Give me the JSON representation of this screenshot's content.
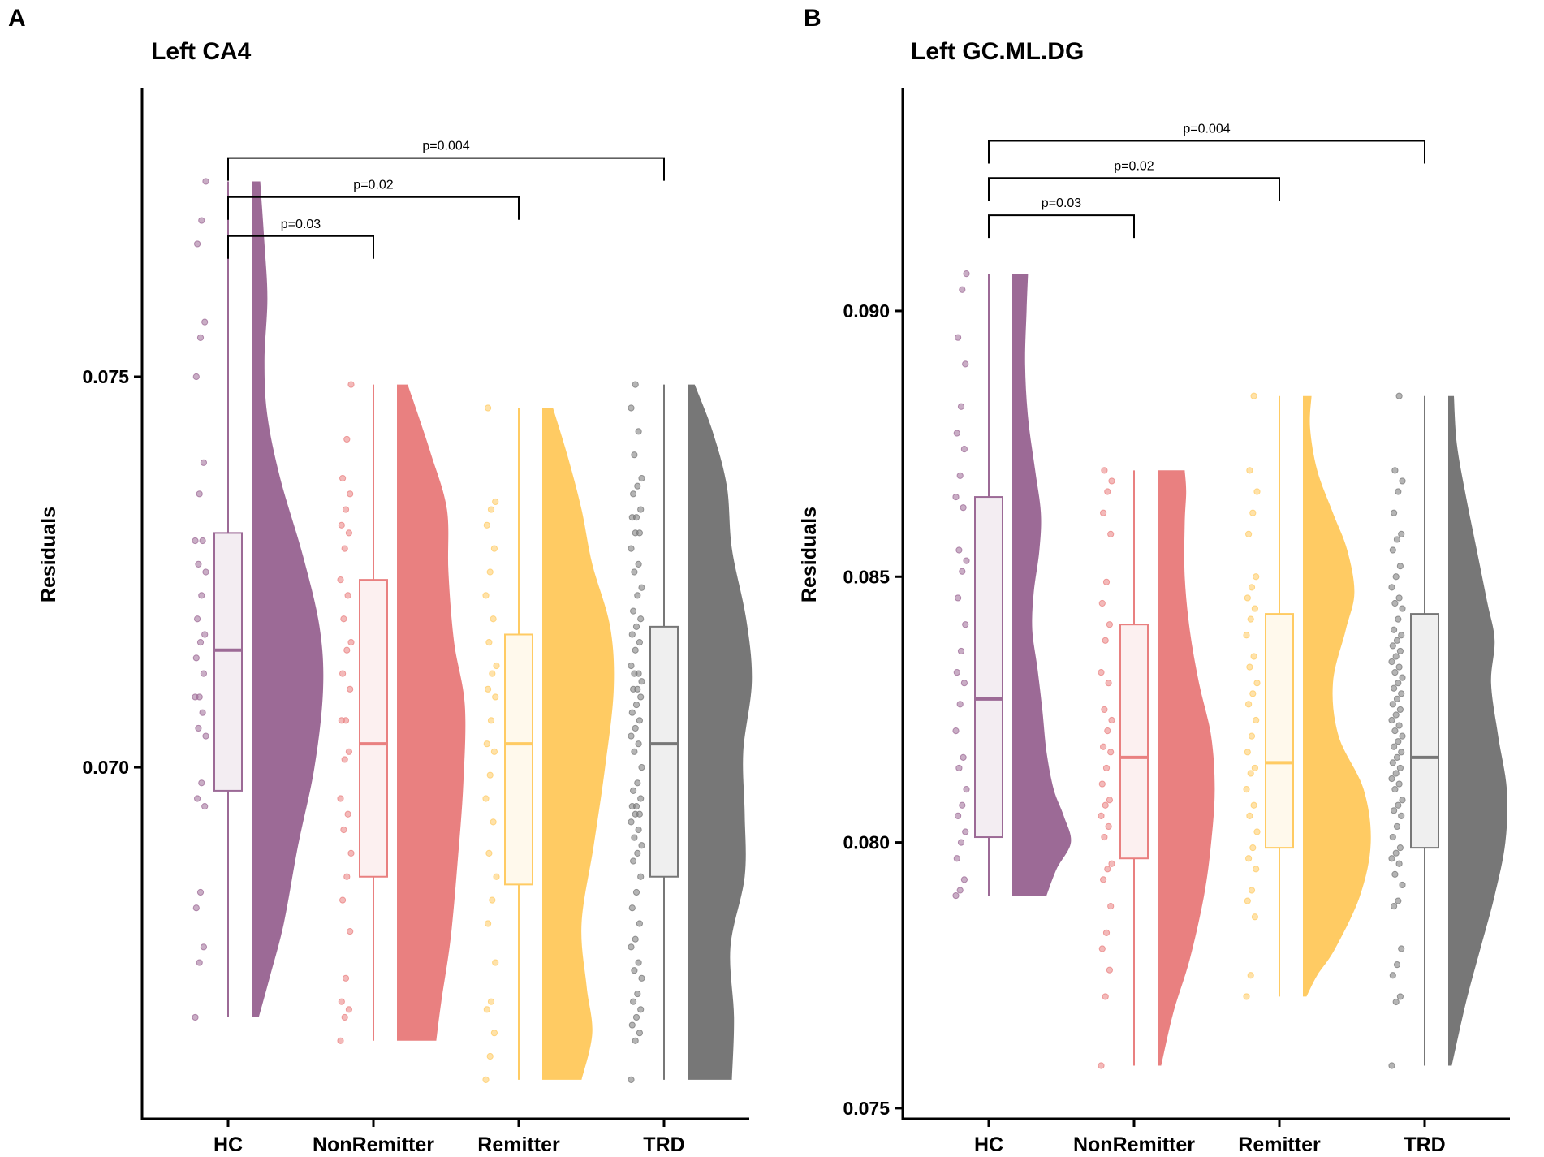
{
  "chart_data": [
    {
      "type": "raincloud",
      "panel_label": "A",
      "title": "Left CA4",
      "xlabel": "",
      "ylabel": "Residuals",
      "ylim": [
        0.0655,
        0.0787
      ],
      "yticks": [
        0.07,
        0.075
      ],
      "ytick_labels": [
        "0.070",
        "0.075"
      ],
      "categories": [
        "HC",
        "NonRemitter",
        "Remitter",
        "TRD"
      ],
      "colors": [
        "#9C6A96",
        "#E98080",
        "#FFCB63",
        "#777777"
      ],
      "boxes": [
        {
          "group": "HC",
          "min": 0.0668,
          "q1": 0.0697,
          "median": 0.0715,
          "q3": 0.073,
          "max": 0.0775
        },
        {
          "group": "NonRemitter",
          "min": 0.0665,
          "q1": 0.0686,
          "median": 0.0703,
          "q3": 0.0724,
          "max": 0.0749
        },
        {
          "group": "Remitter",
          "min": 0.066,
          "q1": 0.0685,
          "median": 0.0703,
          "q3": 0.0717,
          "max": 0.0746
        },
        {
          "group": "TRD",
          "min": 0.066,
          "q1": 0.0686,
          "median": 0.0703,
          "q3": 0.0718,
          "max": 0.0749
        }
      ],
      "comparisons": [
        {
          "from": "HC",
          "to": "NonRemitter",
          "label": "p=0.03",
          "y": 0.0768
        },
        {
          "from": "HC",
          "to": "Remitter",
          "label": "p=0.02",
          "y": 0.0773
        },
        {
          "from": "HC",
          "to": "TRD",
          "label": "p=0.004",
          "y": 0.0778
        }
      ],
      "points": [
        [
          0.0668,
          0.0675,
          0.0677,
          0.0682,
          0.0684,
          0.0695,
          0.0696,
          0.0698,
          0.0704,
          0.0705,
          0.0707,
          0.0709,
          0.0709,
          0.0712,
          0.0714,
          0.0716,
          0.0717,
          0.0719,
          0.0722,
          0.0725,
          0.0726,
          0.0729,
          0.0729,
          0.0735,
          0.0739,
          0.075,
          0.0755,
          0.0757,
          0.0767,
          0.077,
          0.0775
        ],
        [
          0.0665,
          0.0668,
          0.0669,
          0.067,
          0.0673,
          0.0679,
          0.0683,
          0.0686,
          0.0689,
          0.0692,
          0.0694,
          0.0696,
          0.0701,
          0.0702,
          0.0706,
          0.0706,
          0.071,
          0.0712,
          0.0715,
          0.0716,
          0.0719,
          0.0722,
          0.0724,
          0.0728,
          0.073,
          0.0731,
          0.0733,
          0.0735,
          0.0737,
          0.0742,
          0.0749
        ],
        [
          0.066,
          0.0663,
          0.0666,
          0.0669,
          0.067,
          0.0675,
          0.068,
          0.0683,
          0.0686,
          0.0689,
          0.0693,
          0.0696,
          0.0699,
          0.0702,
          0.0703,
          0.0706,
          0.0709,
          0.071,
          0.0712,
          0.0713,
          0.0716,
          0.0719,
          0.0722,
          0.0725,
          0.0728,
          0.0731,
          0.0733,
          0.0734,
          0.0746
        ],
        [
          0.066,
          0.0665,
          0.0666,
          0.0667,
          0.0668,
          0.0669,
          0.067,
          0.0671,
          0.0673,
          0.0674,
          0.0675,
          0.0677,
          0.0678,
          0.068,
          0.0682,
          0.0684,
          0.0686,
          0.0688,
          0.0689,
          0.069,
          0.0691,
          0.0692,
          0.0693,
          0.0694,
          0.0694,
          0.0695,
          0.0695,
          0.0696,
          0.0697,
          0.0698,
          0.07,
          0.0702,
          0.0703,
          0.0704,
          0.0705,
          0.0706,
          0.0707,
          0.0708,
          0.0709,
          0.071,
          0.071,
          0.0711,
          0.0712,
          0.0712,
          0.0713,
          0.0715,
          0.0716,
          0.0717,
          0.0718,
          0.0719,
          0.072,
          0.0722,
          0.0723,
          0.0725,
          0.0726,
          0.0728,
          0.073,
          0.073,
          0.0732,
          0.0732,
          0.0733,
          0.0735,
          0.0736,
          0.0737,
          0.074,
          0.0743,
          0.0746,
          0.0749
        ]
      ],
      "densities": [
        [
          [
            0.0668,
            0.1
          ],
          [
            0.0673,
            0.25
          ],
          [
            0.068,
            0.45
          ],
          [
            0.069,
            0.65
          ],
          [
            0.07,
            0.88
          ],
          [
            0.071,
            1.0
          ],
          [
            0.0718,
            0.95
          ],
          [
            0.0727,
            0.72
          ],
          [
            0.0737,
            0.4
          ],
          [
            0.0745,
            0.22
          ],
          [
            0.0752,
            0.18
          ],
          [
            0.076,
            0.22
          ],
          [
            0.0767,
            0.18
          ],
          [
            0.0775,
            0.12
          ]
        ],
        [
          [
            0.0665,
            0.55
          ],
          [
            0.067,
            0.62
          ],
          [
            0.0678,
            0.75
          ],
          [
            0.0688,
            0.85
          ],
          [
            0.0698,
            0.93
          ],
          [
            0.0708,
            0.95
          ],
          [
            0.0716,
            0.8
          ],
          [
            0.0725,
            0.72
          ],
          [
            0.0733,
            0.7
          ],
          [
            0.074,
            0.48
          ],
          [
            0.0745,
            0.3
          ],
          [
            0.0749,
            0.15
          ]
        ],
        [
          [
            0.066,
            0.55
          ],
          [
            0.0666,
            0.7
          ],
          [
            0.0672,
            0.62
          ],
          [
            0.068,
            0.55
          ],
          [
            0.069,
            0.72
          ],
          [
            0.07,
            0.88
          ],
          [
            0.071,
            1.0
          ],
          [
            0.0718,
            0.95
          ],
          [
            0.0726,
            0.7
          ],
          [
            0.0733,
            0.55
          ],
          [
            0.074,
            0.35
          ],
          [
            0.0746,
            0.15
          ]
        ],
        [
          [
            0.066,
            0.62
          ],
          [
            0.0668,
            0.65
          ],
          [
            0.0677,
            0.6
          ],
          [
            0.0686,
            0.8
          ],
          [
            0.0694,
            0.8
          ],
          [
            0.0702,
            0.78
          ],
          [
            0.0711,
            0.9
          ],
          [
            0.0719,
            0.82
          ],
          [
            0.0728,
            0.62
          ],
          [
            0.0736,
            0.55
          ],
          [
            0.0743,
            0.35
          ],
          [
            0.0749,
            0.1
          ]
        ]
      ]
    },
    {
      "type": "raincloud",
      "panel_label": "B",
      "title": "Left GC.ML.DG",
      "xlabel": "",
      "ylabel": "Residuals",
      "ylim": [
        0.0748,
        0.0942
      ],
      "yticks": [
        0.075,
        0.08,
        0.085,
        0.09
      ],
      "ytick_labels": [
        "0.075",
        "0.080",
        "0.085",
        "0.090"
      ],
      "categories": [
        "HC",
        "NonRemitter",
        "Remitter",
        "TRD"
      ],
      "colors": [
        "#9C6A96",
        "#E98080",
        "#FFCB63",
        "#777777"
      ],
      "boxes": [
        {
          "group": "HC",
          "min": 0.079,
          "q1": 0.0801,
          "median": 0.0827,
          "q3": 0.0865,
          "max": 0.0907
        },
        {
          "group": "NonRemitter",
          "min": 0.0758,
          "q1": 0.0797,
          "median": 0.0816,
          "q3": 0.0841,
          "max": 0.087
        },
        {
          "group": "Remitter",
          "min": 0.0771,
          "q1": 0.0799,
          "median": 0.0815,
          "q3": 0.0843,
          "max": 0.0884
        },
        {
          "group": "TRD",
          "min": 0.0758,
          "q1": 0.0799,
          "median": 0.0816,
          "q3": 0.0843,
          "max": 0.0884
        }
      ],
      "comparisons": [
        {
          "from": "HC",
          "to": "NonRemitter",
          "label": "p=0.03",
          "y": 0.0918
        },
        {
          "from": "HC",
          "to": "Remitter",
          "label": "p=0.02",
          "y": 0.0925
        },
        {
          "from": "HC",
          "to": "TRD",
          "label": "p=0.004",
          "y": 0.0932
        }
      ],
      "points": [
        [
          0.079,
          0.0791,
          0.0793,
          0.0797,
          0.08,
          0.0802,
          0.0805,
          0.0807,
          0.081,
          0.0814,
          0.0816,
          0.0821,
          0.0826,
          0.083,
          0.0832,
          0.0836,
          0.0841,
          0.0846,
          0.0851,
          0.0853,
          0.0855,
          0.0863,
          0.0865,
          0.0869,
          0.0874,
          0.0877,
          0.0882,
          0.089,
          0.0895,
          0.0904,
          0.0907
        ],
        [
          0.0758,
          0.0771,
          0.0776,
          0.078,
          0.0783,
          0.0788,
          0.0793,
          0.0795,
          0.0796,
          0.0801,
          0.0803,
          0.0805,
          0.0807,
          0.0808,
          0.0811,
          0.0814,
          0.0817,
          0.0818,
          0.0821,
          0.0823,
          0.0825,
          0.083,
          0.0832,
          0.0838,
          0.0841,
          0.0845,
          0.0849,
          0.0858,
          0.0862,
          0.0866,
          0.0868,
          0.087
        ],
        [
          0.0771,
          0.0775,
          0.0786,
          0.0789,
          0.0791,
          0.0795,
          0.0797,
          0.0799,
          0.0802,
          0.0805,
          0.0807,
          0.081,
          0.0813,
          0.0814,
          0.0817,
          0.082,
          0.0823,
          0.0826,
          0.0828,
          0.083,
          0.0833,
          0.0835,
          0.0839,
          0.0842,
          0.0844,
          0.0846,
          0.0848,
          0.085,
          0.0858,
          0.0862,
          0.0866,
          0.087,
          0.0884
        ],
        [
          0.0758,
          0.077,
          0.0771,
          0.0775,
          0.0777,
          0.078,
          0.0788,
          0.0789,
          0.0792,
          0.0794,
          0.0796,
          0.0797,
          0.0798,
          0.0799,
          0.0801,
          0.0803,
          0.0805,
          0.0806,
          0.0807,
          0.0808,
          0.081,
          0.0811,
          0.0812,
          0.0813,
          0.0814,
          0.0815,
          0.0816,
          0.0817,
          0.0818,
          0.0819,
          0.082,
          0.0821,
          0.0822,
          0.0823,
          0.0824,
          0.0825,
          0.0826,
          0.0827,
          0.0828,
          0.0829,
          0.083,
          0.0831,
          0.0832,
          0.0833,
          0.0834,
          0.0835,
          0.0836,
          0.0837,
          0.0838,
          0.0839,
          0.084,
          0.0842,
          0.0844,
          0.0845,
          0.0846,
          0.0848,
          0.085,
          0.0852,
          0.0855,
          0.0857,
          0.0858,
          0.0862,
          0.0866,
          0.0868,
          0.087,
          0.0884
        ]
      ],
      "densities": [
        [
          [
            0.079,
            0.48
          ],
          [
            0.0795,
            0.62
          ],
          [
            0.08,
            0.82
          ],
          [
            0.0805,
            0.72
          ],
          [
            0.081,
            0.58
          ],
          [
            0.0817,
            0.48
          ],
          [
            0.0825,
            0.42
          ],
          [
            0.0833,
            0.35
          ],
          [
            0.084,
            0.28
          ],
          [
            0.0847,
            0.3
          ],
          [
            0.0855,
            0.38
          ],
          [
            0.0862,
            0.4
          ],
          [
            0.087,
            0.32
          ],
          [
            0.088,
            0.22
          ],
          [
            0.089,
            0.18
          ],
          [
            0.09,
            0.2
          ],
          [
            0.0907,
            0.22
          ]
        ],
        [
          [
            0.0758,
            0.05
          ],
          [
            0.0768,
            0.22
          ],
          [
            0.0778,
            0.45
          ],
          [
            0.079,
            0.65
          ],
          [
            0.08,
            0.75
          ],
          [
            0.081,
            0.8
          ],
          [
            0.082,
            0.75
          ],
          [
            0.083,
            0.58
          ],
          [
            0.084,
            0.45
          ],
          [
            0.085,
            0.38
          ],
          [
            0.086,
            0.38
          ],
          [
            0.0866,
            0.4
          ],
          [
            0.087,
            0.38
          ]
        ],
        [
          [
            0.0771,
            0.05
          ],
          [
            0.0775,
            0.2
          ],
          [
            0.078,
            0.45
          ],
          [
            0.079,
            0.8
          ],
          [
            0.08,
            0.95
          ],
          [
            0.081,
            0.85
          ],
          [
            0.082,
            0.5
          ],
          [
            0.083,
            0.42
          ],
          [
            0.084,
            0.6
          ],
          [
            0.0847,
            0.72
          ],
          [
            0.0855,
            0.62
          ],
          [
            0.0862,
            0.42
          ],
          [
            0.087,
            0.2
          ],
          [
            0.0878,
            0.1
          ],
          [
            0.0884,
            0.12
          ]
        ],
        [
          [
            0.0758,
            0.05
          ],
          [
            0.077,
            0.25
          ],
          [
            0.078,
            0.45
          ],
          [
            0.079,
            0.65
          ],
          [
            0.08,
            0.8
          ],
          [
            0.081,
            0.82
          ],
          [
            0.082,
            0.7
          ],
          [
            0.083,
            0.6
          ],
          [
            0.0838,
            0.65
          ],
          [
            0.0845,
            0.55
          ],
          [
            0.0855,
            0.4
          ],
          [
            0.0865,
            0.25
          ],
          [
            0.0875,
            0.12
          ],
          [
            0.0884,
            0.08
          ]
        ]
      ]
    }
  ]
}
